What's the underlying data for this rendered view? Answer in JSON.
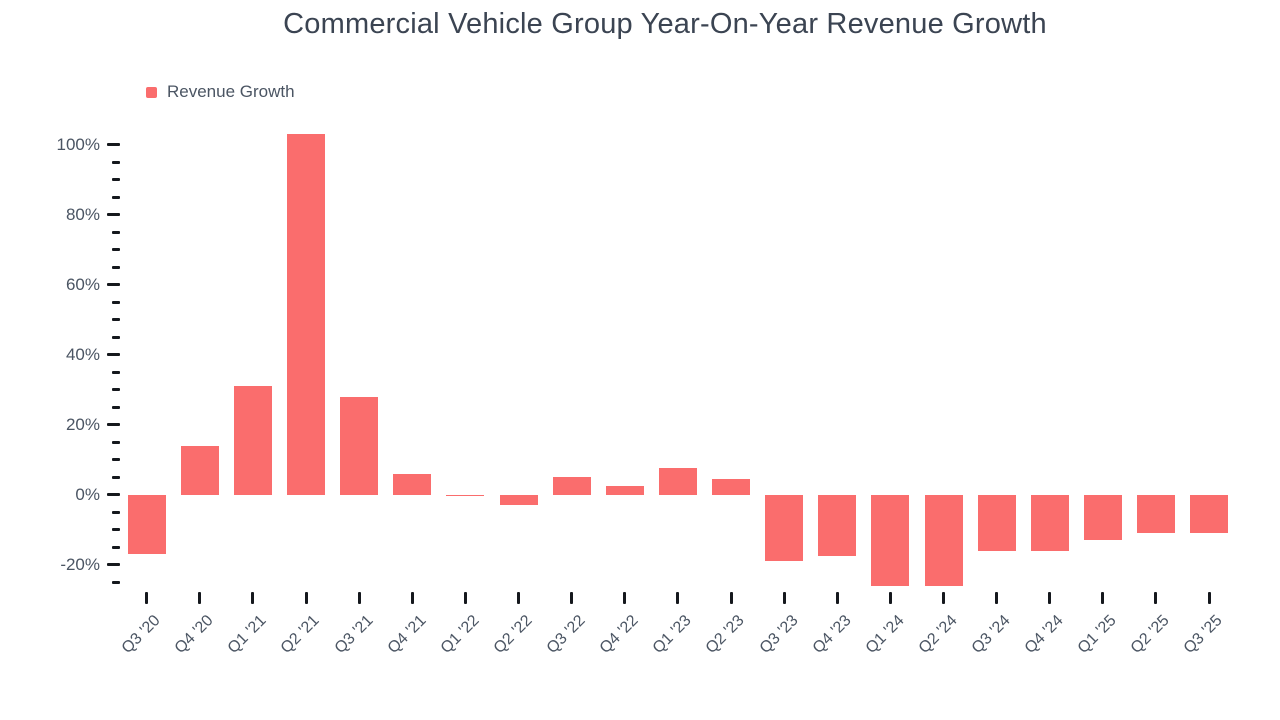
{
  "title": "Commercial Vehicle Group Year-On-Year Revenue Growth",
  "legend": {
    "items": [
      {
        "label": "Revenue Growth",
        "color": "#fa6d6d"
      }
    ]
  },
  "colors": {
    "bar": "#fa6d6d",
    "title_text": "#3b4452",
    "axis_text": "#4b5563",
    "tick_mark": "#15181d",
    "background": "#ffffff"
  },
  "chart_data": {
    "type": "bar",
    "title": "Commercial Vehicle Group Year-On-Year Revenue Growth",
    "xlabel": "",
    "ylabel": "",
    "unit": "%",
    "categories": [
      "Q3 '20",
      "Q4 '20",
      "Q1 '21",
      "Q2 '21",
      "Q3 '21",
      "Q4 '21",
      "Q1 '22",
      "Q2 '22",
      "Q3 '22",
      "Q4 '22",
      "Q1 '23",
      "Q2 '23",
      "Q3 '23",
      "Q4 '23",
      "Q1 '24",
      "Q2 '24",
      "Q3 '24",
      "Q4 '24",
      "Q1 '25",
      "Q2 '25",
      "Q3 '25"
    ],
    "series": [
      {
        "name": "Revenue Growth",
        "color": "#fa6d6d",
        "values": [
          -17,
          14,
          31,
          103,
          28,
          6,
          -0.5,
          -3,
          5,
          2.5,
          7.5,
          4.5,
          -19,
          -17.5,
          -26,
          -26,
          -16,
          -16,
          -13,
          -11,
          -11
        ]
      }
    ],
    "y_axis": {
      "min": -25,
      "max": 103,
      "major_step": 20,
      "minor_step": 5,
      "major_tick_labels": [
        "100%",
        "80%",
        "60%",
        "40%",
        "20%",
        "0%",
        "-20%"
      ]
    },
    "grid": false,
    "legend_position": "top-left"
  }
}
